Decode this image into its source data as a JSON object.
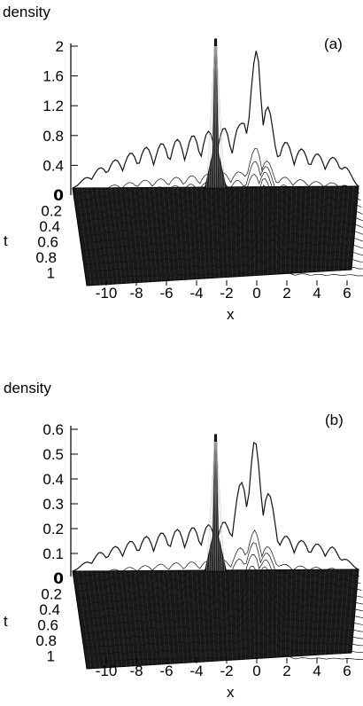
{
  "chart_data": [
    {
      "type": "surface",
      "panel_label": "(a)",
      "zlabel": "density",
      "xlabel": "x",
      "ylabel": "t",
      "z_ticks": [
        "2",
        "1.6",
        "1.2",
        "0.8",
        "0.4",
        "0"
      ],
      "t_ticks": [
        "0",
        "0.2",
        "0.4",
        "0.6",
        "0.8",
        "1"
      ],
      "x_ticks": [
        "-10",
        "-8",
        "-6",
        "-4",
        "-2",
        "0",
        "2",
        "4",
        "6"
      ],
      "zlim": [
        0,
        2
      ],
      "tlim": [
        0,
        1
      ],
      "xlim": [
        -11,
        7
      ],
      "peak": {
        "x": -2,
        "t": 0,
        "density": 2.0
      },
      "ridge_density_at_t0": [
        0.0,
        0.2,
        0.35,
        0.45,
        0.55,
        0.6,
        0.65,
        0.7,
        0.75,
        0.8,
        0.85,
        2.0,
        0.7,
        0.6,
        0.5,
        0.45,
        0.4,
        0.0
      ]
    },
    {
      "type": "surface",
      "panel_label": "(b)",
      "zlabel": "density",
      "xlabel": "x",
      "ylabel": "t",
      "z_ticks": [
        "0.6",
        "0.5",
        "0.4",
        "0.3",
        "0.2",
        "0.1",
        "0"
      ],
      "t_ticks": [
        "0",
        "0.2",
        "0.4",
        "0.6",
        "0.8",
        "1"
      ],
      "x_ticks": [
        "-10",
        "-8",
        "-6",
        "-4",
        "-2",
        "0",
        "2",
        "4",
        "6"
      ],
      "zlim": [
        0,
        0.6
      ],
      "tlim": [
        0,
        1
      ],
      "xlim": [
        -11,
        7
      ],
      "peak": {
        "x": -2,
        "t": 0,
        "density": 0.55
      },
      "ridge_density_at_t0": [
        0.0,
        0.08,
        0.12,
        0.15,
        0.17,
        0.18,
        0.2,
        0.55,
        0.15,
        0.12,
        0.1,
        0.0
      ]
    }
  ]
}
